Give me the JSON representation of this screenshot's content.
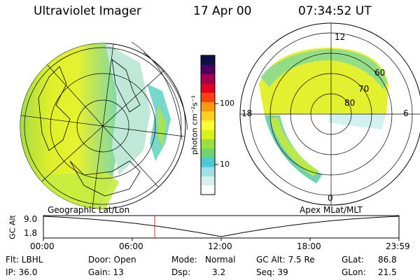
{
  "header": {
    "title": "Ultraviolet Imager",
    "date": "17 Apr 00",
    "time": "07:34:52 UT"
  },
  "colorbar": {
    "label": "photon cm⁻²s⁻¹",
    "ticks": [
      "100",
      "10"
    ],
    "colors": [
      "#ffffff",
      "#d8eef0",
      "#9fe0e6",
      "#4cc9d4",
      "#6fd46f",
      "#9be040",
      "#d6f020",
      "#ffff30",
      "#ffd020",
      "#ff9a10",
      "#ff4010",
      "#e00020",
      "#a00050",
      "#500060",
      "#101040"
    ]
  },
  "left_map": {
    "caption": "Geographic Lat/Lon"
  },
  "right_map": {
    "caption": "Apex MLat/MLT",
    "mlt_labels": {
      "top": "12",
      "left": "18",
      "right": "6",
      "bottom": "0"
    },
    "lat_labels": [
      "60",
      "70",
      "80"
    ]
  },
  "altitude_plot": {
    "ylabel": "GC Alt",
    "yticks": [
      "9.0",
      "1.8"
    ],
    "xticks": [
      "00:00",
      "06:00",
      "12:00",
      "18:00",
      "23:59"
    ],
    "current_time_marker": "07:34"
  },
  "info": {
    "filter": "Flt: LBHL",
    "door": "Door: Open",
    "mode_label": "Mode:",
    "mode_value": "Normal",
    "gc_alt": "GC Alt: 7.5 Re",
    "glat_label": "GLat:",
    "glat_value": "86.8",
    "ip": "IP: 36.0",
    "gain": "Gain: 13",
    "dsp_label": "Dsp:",
    "dsp_value": "3.2",
    "seq": "Seq: 39",
    "glon_label": "GLon:",
    "glon_value": "21.5"
  }
}
